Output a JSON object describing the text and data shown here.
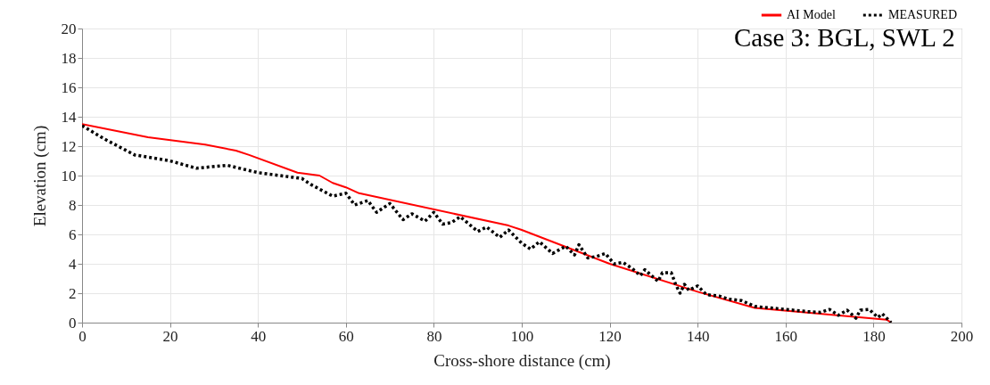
{
  "chart_data": {
    "type": "line",
    "title": "Case 3: BGL, SWL 2",
    "xlabel": "Cross-shore distance (cm)",
    "ylabel": "Elevation (cm)",
    "xlim": [
      0,
      200
    ],
    "xticks": [
      0,
      20,
      40,
      60,
      80,
      100,
      120,
      140,
      160,
      180,
      200
    ],
    "ylim": [
      0,
      20
    ],
    "yticks": [
      0,
      2,
      4,
      6,
      8,
      10,
      12,
      14,
      16,
      18,
      20
    ],
    "grid": true,
    "legend": "top right",
    "marker": "none",
    "series": [
      {
        "name": "AI Model",
        "color": "#ff0000",
        "line_style": "solid",
        "x": [
          0,
          15,
          28,
          35,
          38,
          49,
          54,
          57,
          60,
          63,
          97,
          100,
          120,
          140,
          153,
          183,
          184
        ],
        "values": [
          13.5,
          12.6,
          12.1,
          11.7,
          11.4,
          10.2,
          10.0,
          9.5,
          9.2,
          8.8,
          6.6,
          6.3,
          4.0,
          2.1,
          1.0,
          0.2,
          0
        ]
      },
      {
        "name": "MEASURED",
        "color": "#000000",
        "line_style": "dotted",
        "x": [
          0,
          5,
          12,
          20,
          26,
          33,
          40,
          50,
          52,
          57,
          60,
          62,
          65,
          67,
          70,
          73,
          75,
          78,
          80,
          82,
          84,
          86,
          90,
          92,
          95,
          97,
          100,
          102,
          104,
          107,
          110,
          112,
          113,
          115,
          117,
          119,
          121,
          123,
          125,
          127,
          128,
          131,
          132,
          134,
          135,
          136,
          137,
          138,
          140,
          142,
          145,
          147,
          150,
          153,
          160,
          165,
          168,
          170,
          172,
          174,
          176,
          177,
          179,
          181,
          182,
          184
        ],
        "values": [
          13.4,
          12.5,
          11.4,
          11.0,
          10.5,
          10.7,
          10.2,
          9.8,
          9.4,
          8.6,
          8.8,
          8.0,
          8.3,
          7.5,
          8.1,
          7.0,
          7.4,
          6.9,
          7.5,
          6.7,
          6.8,
          7.2,
          6.2,
          6.5,
          5.8,
          6.3,
          5.4,
          5.0,
          5.5,
          4.7,
          5.2,
          4.6,
          5.3,
          4.4,
          4.5,
          4.7,
          4.0,
          4.1,
          3.7,
          3.2,
          3.6,
          2.8,
          3.4,
          3.4,
          2.6,
          2.0,
          2.6,
          2.2,
          2.5,
          1.9,
          1.8,
          1.6,
          1.5,
          1.1,
          0.9,
          0.75,
          0.7,
          0.9,
          0.5,
          0.85,
          0.3,
          0.85,
          0.9,
          0.35,
          0.6,
          0
        ]
      }
    ]
  }
}
